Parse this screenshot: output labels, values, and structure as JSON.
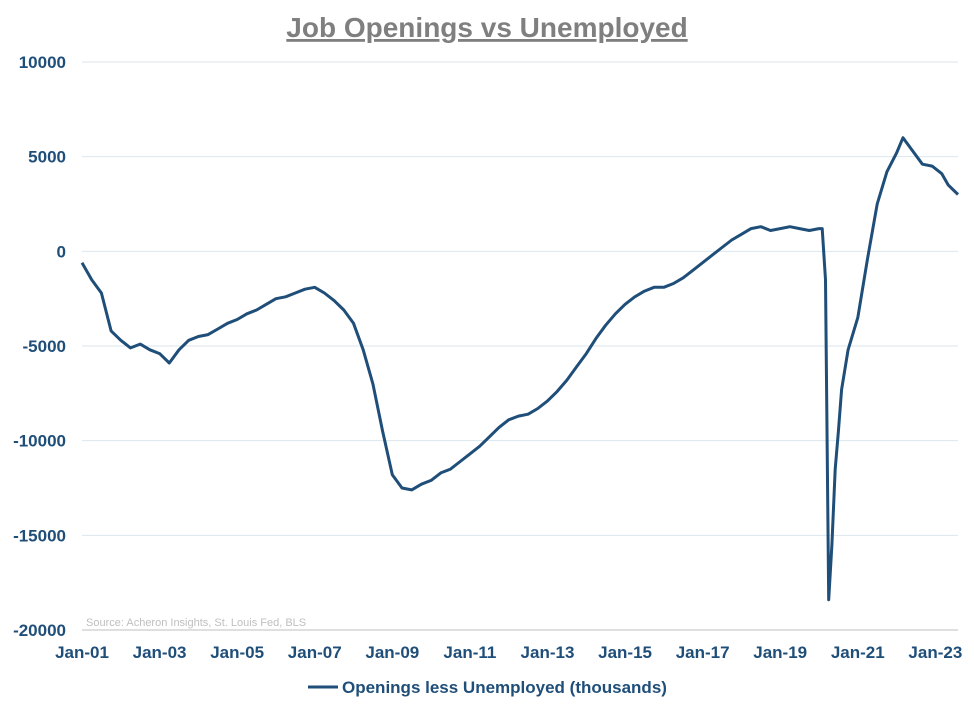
{
  "chart_data": {
    "type": "line",
    "title": "Job Openings vs Unemployed",
    "xlabel": "",
    "ylabel": "",
    "ylim": [
      -20000,
      10000
    ],
    "yticks": [
      "10000",
      "5000",
      "0",
      "-5000",
      "-10000",
      "-15000",
      "-20000"
    ],
    "xtick_labels": [
      "Jan-01",
      "Jan-03",
      "Jan-05",
      "Jan-07",
      "Jan-09",
      "Jan-11",
      "Jan-13",
      "Jan-15",
      "Jan-17",
      "Jan-19",
      "Jan-21",
      "Jan-23"
    ],
    "xlim": [
      "2001-01",
      "2023-08"
    ],
    "grid": "horizontal",
    "legend": "bottom",
    "line_color": "#1f4e79",
    "source_note": "Source: Acheron Insights, St. Louis Fed, BLS",
    "series": [
      {
        "name": "Openings less Unemployed (thousands)",
        "x": [
          "2001-01",
          "2001-04",
          "2001-07",
          "2001-10",
          "2002-01",
          "2002-04",
          "2002-07",
          "2002-10",
          "2003-01",
          "2003-04",
          "2003-07",
          "2003-10",
          "2004-01",
          "2004-04",
          "2004-07",
          "2004-10",
          "2005-01",
          "2005-04",
          "2005-07",
          "2005-10",
          "2006-01",
          "2006-04",
          "2006-07",
          "2006-10",
          "2007-01",
          "2007-04",
          "2007-07",
          "2007-10",
          "2008-01",
          "2008-04",
          "2008-07",
          "2008-10",
          "2009-01",
          "2009-04",
          "2009-07",
          "2009-10",
          "2010-01",
          "2010-04",
          "2010-07",
          "2010-10",
          "2011-01",
          "2011-04",
          "2011-07",
          "2011-10",
          "2012-01",
          "2012-04",
          "2012-07",
          "2012-10",
          "2013-01",
          "2013-04",
          "2013-07",
          "2013-10",
          "2014-01",
          "2014-04",
          "2014-07",
          "2014-10",
          "2015-01",
          "2015-04",
          "2015-07",
          "2015-10",
          "2016-01",
          "2016-04",
          "2016-07",
          "2016-10",
          "2017-01",
          "2017-04",
          "2017-07",
          "2017-10",
          "2018-01",
          "2018-04",
          "2018-07",
          "2018-10",
          "2019-01",
          "2019-04",
          "2019-07",
          "2019-10",
          "2020-01",
          "2020-02",
          "2020-03",
          "2020-04",
          "2020-05",
          "2020-06",
          "2020-07",
          "2020-08",
          "2020-10",
          "2021-01",
          "2021-04",
          "2021-07",
          "2021-10",
          "2022-01",
          "2022-03",
          "2022-06",
          "2022-09",
          "2022-12",
          "2023-03",
          "2023-05",
          "2023-08"
        ],
        "values": [
          -600,
          -1500,
          -2200,
          -4200,
          -4700,
          -5100,
          -4900,
          -5200,
          -5400,
          -5900,
          -5200,
          -4700,
          -4500,
          -4400,
          -4100,
          -3800,
          -3600,
          -3300,
          -3100,
          -2800,
          -2500,
          -2400,
          -2200,
          -2000,
          -1900,
          -2200,
          -2600,
          -3100,
          -3800,
          -5200,
          -7000,
          -9500,
          -11800,
          -12500,
          -12600,
          -12300,
          -12100,
          -11700,
          -11500,
          -11100,
          -10700,
          -10300,
          -9800,
          -9300,
          -8900,
          -8700,
          -8600,
          -8300,
          -7900,
          -7400,
          -6800,
          -6100,
          -5400,
          -4600,
          -3900,
          -3300,
          -2800,
          -2400,
          -2100,
          -1900,
          -1900,
          -1700,
          -1400,
          -1000,
          -600,
          -200,
          200,
          600,
          900,
          1200,
          1300,
          1100,
          1200,
          1300,
          1200,
          1100,
          1200,
          1200,
          -1500,
          -18400,
          -15500,
          -11500,
          -9500,
          -7300,
          -5200,
          -3500,
          -400,
          2500,
          4200,
          5200,
          6000,
          5300,
          4600,
          4500,
          4100,
          3500,
          3000
        ]
      }
    ]
  }
}
